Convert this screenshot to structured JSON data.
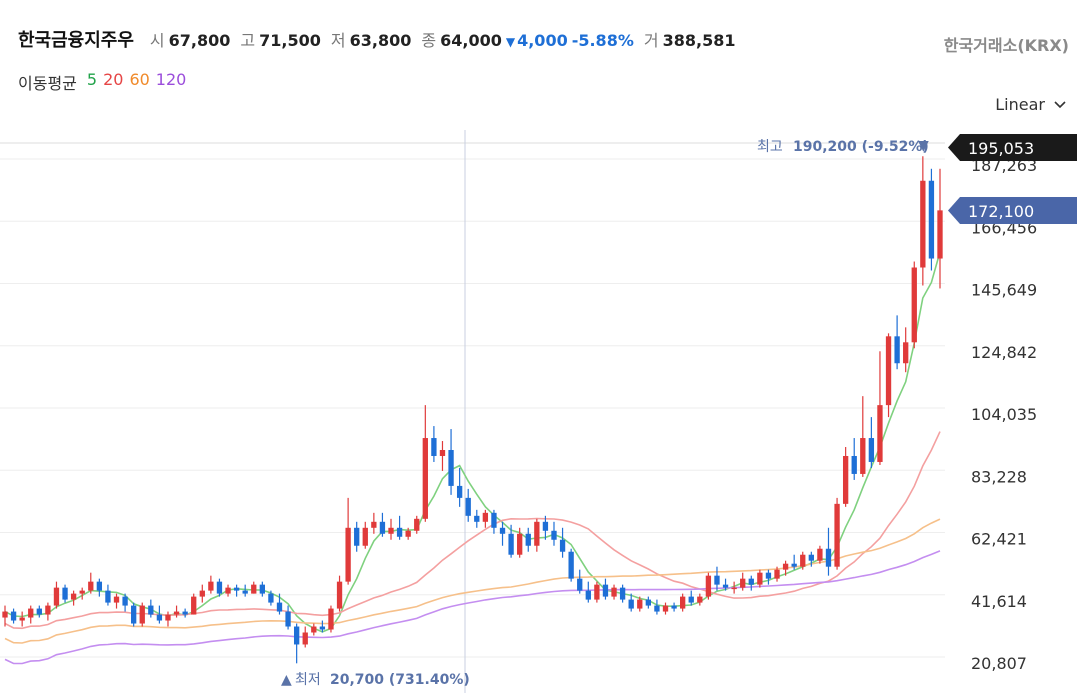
{
  "header": {
    "stock_name": "한국금융지주우",
    "open_label": "시",
    "open": "67,800",
    "high_label": "고",
    "high": "71,500",
    "low_label": "저",
    "low": "63,800",
    "close_label": "종",
    "close": "64,000",
    "change_arrow": "▼",
    "change": "4,000",
    "change_pct": "-5.88%",
    "volume_label": "거",
    "volume": "388,581",
    "exchange": "한국거래소(KRX)"
  },
  "moving_avg": {
    "title": "이동평균",
    "periods": [
      {
        "label": "5",
        "color": "#22a34a"
      },
      {
        "label": "20",
        "color": "#e64545"
      },
      {
        "label": "60",
        "color": "#f08a2a"
      },
      {
        "label": "120",
        "color": "#9b4ddb"
      }
    ]
  },
  "scale_selector": {
    "label": "Linear",
    "icon": "chevron-down-icon"
  },
  "annotations": {
    "high_label": "최고",
    "high_value": "190,200 (-9.52%)",
    "high_arrow": "▼",
    "low_arrow": "▲",
    "low_label": "최저",
    "low_value": "20,700 (731.40%)"
  },
  "price_tags": {
    "top_tag": "195,053",
    "current_tag": "172,100",
    "top_color": "#1a1a1a",
    "current_color": "#4a66a8"
  },
  "colors": {
    "up": "#e03a3a",
    "down": "#1e6fd6",
    "ma5": "#7fd17f",
    "ma20": "#f4a0a0",
    "ma60": "#f6c08a",
    "ma120": "#c48ef0"
  },
  "chart_data": {
    "type": "candlestick",
    "y_ticks": [
      "187,263",
      "166,456",
      "145,649",
      "124,842",
      "104,035",
      "83,228",
      "62,421",
      "41,614",
      "20,807"
    ],
    "ylim": [
      12000,
      200000
    ],
    "candles": [
      [
        36000,
        40000,
        33000,
        38000
      ],
      [
        38000,
        39000,
        34000,
        35000
      ],
      [
        35000,
        38000,
        33000,
        36000
      ],
      [
        36000,
        40000,
        34000,
        39000
      ],
      [
        39000,
        40000,
        36000,
        37000
      ],
      [
        37000,
        41000,
        35000,
        40000
      ],
      [
        40000,
        48000,
        39000,
        46000
      ],
      [
        46000,
        47000,
        41000,
        42000
      ],
      [
        42000,
        45000,
        40000,
        44000
      ],
      [
        44000,
        46000,
        42000,
        45000
      ],
      [
        45000,
        51000,
        44000,
        48000
      ],
      [
        48000,
        49000,
        43000,
        45000
      ],
      [
        45000,
        47000,
        40000,
        41000
      ],
      [
        41000,
        44000,
        39000,
        43000
      ],
      [
        43000,
        44000,
        38000,
        40000
      ],
      [
        40000,
        41000,
        33000,
        34000
      ],
      [
        34000,
        41000,
        33000,
        40000
      ],
      [
        40000,
        42000,
        36000,
        37000
      ],
      [
        37000,
        40000,
        34000,
        35000
      ],
      [
        35000,
        38000,
        33000,
        37000
      ],
      [
        37000,
        40000,
        36000,
        38000
      ],
      [
        38000,
        39000,
        36000,
        37000
      ],
      [
        37000,
        44000,
        37000,
        43000
      ],
      [
        43000,
        47000,
        41000,
        45000
      ],
      [
        45000,
        50000,
        44000,
        48000
      ],
      [
        48000,
        49000,
        43000,
        44000
      ],
      [
        44000,
        47000,
        43000,
        46000
      ],
      [
        46000,
        47000,
        43000,
        45000
      ],
      [
        45000,
        47000,
        43000,
        44000
      ],
      [
        44000,
        48000,
        44000,
        47000
      ],
      [
        47000,
        48000,
        43000,
        44000
      ],
      [
        44000,
        45000,
        40000,
        41000
      ],
      [
        41000,
        44000,
        37000,
        38000
      ],
      [
        38000,
        40000,
        32000,
        33000
      ],
      [
        33000,
        34000,
        20700,
        27000
      ],
      [
        27000,
        33000,
        26000,
        31000
      ],
      [
        31000,
        34000,
        30000,
        33000
      ],
      [
        33000,
        35000,
        31000,
        32000
      ],
      [
        32000,
        40000,
        31000,
        39000
      ],
      [
        39000,
        50000,
        38000,
        48000
      ],
      [
        48000,
        76000,
        47000,
        66000
      ],
      [
        66000,
        68000,
        58000,
        60000
      ],
      [
        60000,
        68000,
        59000,
        66000
      ],
      [
        66000,
        71000,
        64000,
        68000
      ],
      [
        68000,
        71000,
        63000,
        64000
      ],
      [
        64000,
        69000,
        62000,
        66000
      ],
      [
        66000,
        70000,
        62000,
        63000
      ],
      [
        63000,
        66000,
        62000,
        65000
      ],
      [
        65000,
        70000,
        64000,
        69000
      ],
      [
        69000,
        107000,
        68000,
        96000
      ],
      [
        96000,
        100000,
        88000,
        90000
      ],
      [
        90000,
        95000,
        85000,
        92000
      ],
      [
        92000,
        99000,
        77000,
        80000
      ],
      [
        80000,
        86000,
        73000,
        76000
      ],
      [
        76000,
        79000,
        68000,
        70000
      ],
      [
        70000,
        72000,
        66000,
        68000
      ],
      [
        68000,
        72000,
        66000,
        71000
      ],
      [
        71000,
        72000,
        64000,
        66000
      ],
      [
        66000,
        68000,
        60000,
        64000
      ],
      [
        64000,
        67000,
        56000,
        57000
      ],
      [
        57000,
        66000,
        56000,
        64000
      ],
      [
        64000,
        66000,
        58000,
        60000
      ],
      [
        60000,
        69000,
        58000,
        68000
      ],
      [
        68000,
        70000,
        62000,
        65000
      ],
      [
        65000,
        68000,
        60000,
        62000
      ],
      [
        62000,
        66000,
        56000,
        58000
      ],
      [
        58000,
        59000,
        48000,
        49000
      ],
      [
        49000,
        52000,
        44000,
        45000
      ],
      [
        45000,
        48000,
        41000,
        42000
      ],
      [
        42000,
        48000,
        41000,
        47000
      ],
      [
        47000,
        49000,
        42000,
        43000
      ],
      [
        43000,
        47000,
        42000,
        46000
      ],
      [
        46000,
        47000,
        41000,
        42000
      ],
      [
        42000,
        44000,
        38000,
        39000
      ],
      [
        39000,
        43000,
        38000,
        42000
      ],
      [
        42000,
        43000,
        39000,
        40000
      ],
      [
        40000,
        42000,
        37000,
        38000
      ],
      [
        38000,
        41000,
        37000,
        40000
      ],
      [
        40000,
        41000,
        38000,
        39000
      ],
      [
        39000,
        44000,
        38000,
        43000
      ],
      [
        43000,
        45000,
        40000,
        41000
      ],
      [
        41000,
        44000,
        40000,
        43000
      ],
      [
        43000,
        51000,
        42000,
        50000
      ],
      [
        50000,
        53000,
        45000,
        47000
      ],
      [
        47000,
        49000,
        45000,
        46000
      ],
      [
        46000,
        48000,
        44000,
        46000
      ],
      [
        46000,
        51000,
        45000,
        49000
      ],
      [
        49000,
        50000,
        45000,
        47000
      ],
      [
        47000,
        52000,
        46000,
        51000
      ],
      [
        51000,
        52000,
        47000,
        49000
      ],
      [
        49000,
        53000,
        48000,
        52000
      ],
      [
        52000,
        55000,
        50000,
        54000
      ],
      [
        54000,
        57000,
        52000,
        53000
      ],
      [
        53000,
        58000,
        52000,
        57000
      ],
      [
        57000,
        58000,
        53000,
        55000
      ],
      [
        55000,
        60000,
        54000,
        59000
      ],
      [
        59000,
        66000,
        50000,
        53000
      ],
      [
        53000,
        76000,
        52000,
        74000
      ],
      [
        74000,
        93000,
        73000,
        90000
      ],
      [
        90000,
        96000,
        82000,
        84000
      ],
      [
        84000,
        110000,
        83000,
        96000
      ],
      [
        96000,
        103000,
        86000,
        88000
      ],
      [
        88000,
        125000,
        87000,
        107000
      ],
      [
        107000,
        131000,
        103000,
        130000
      ],
      [
        130000,
        137000,
        119000,
        121000
      ],
      [
        121000,
        133000,
        118000,
        128000
      ],
      [
        128000,
        155000,
        126000,
        153000
      ],
      [
        153000,
        190200,
        147000,
        182000
      ],
      [
        182000,
        186000,
        152000,
        156000
      ],
      [
        156000,
        186000,
        146000,
        172100
      ]
    ]
  }
}
